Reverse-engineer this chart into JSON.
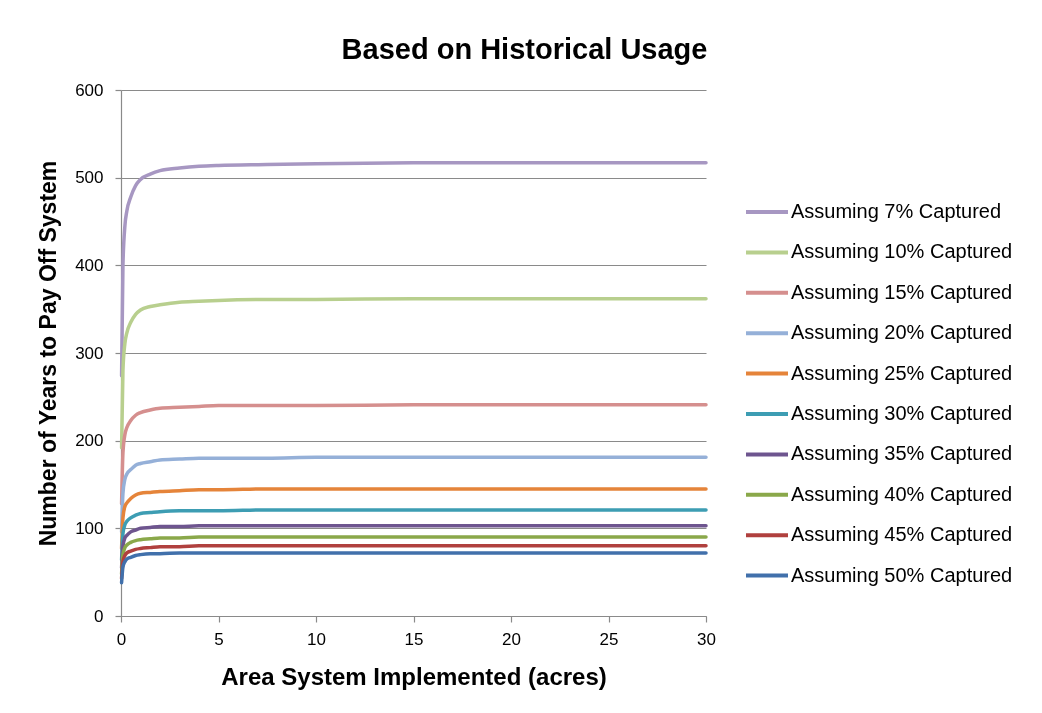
{
  "chart_data": {
    "type": "line",
    "title": "Based on Historical Usage",
    "xlabel": "Area System Implemented (acres)",
    "ylabel": "Number of Years to Pay Off System",
    "x": [
      0.03,
      0.1,
      0.2,
      0.3,
      0.5,
      0.75,
      1,
      1.5,
      2,
      3,
      4,
      5,
      7.5,
      10,
      15,
      20,
      30
    ],
    "series": [
      {
        "name": "Assuming 7% Captured",
        "color": "#a797c2",
        "values": [
          274,
          400,
          445,
          462,
          478,
          491,
          498,
          504,
          508,
          511,
          513,
          514,
          515,
          516,
          517,
          517,
          517
        ]
      },
      {
        "name": "Assuming 10% Captured",
        "color": "#b8cf8e",
        "values": [
          192,
          280,
          311,
          323,
          335,
          344,
          349,
          353,
          355,
          358,
          359,
          360,
          361,
          361,
          362,
          362,
          362
        ]
      },
      {
        "name": "Assuming 15% Captured",
        "color": "#d58f8e",
        "values": [
          128,
          186,
          207,
          215,
          223,
          229,
          232,
          235,
          237,
          238,
          239,
          240,
          240,
          240,
          241,
          241,
          241
        ]
      },
      {
        "name": "Assuming 20% Captured",
        "color": "#95b0d8",
        "values": [
          96,
          140,
          156,
          162,
          167,
          172,
          174,
          176,
          178,
          179,
          180,
          180,
          180,
          181,
          181,
          181,
          181
        ]
      },
      {
        "name": "Assuming 25% Captured",
        "color": "#e5843a",
        "values": [
          77,
          112,
          125,
          129,
          134,
          138,
          140,
          141,
          142,
          143,
          144,
          144,
          145,
          145,
          145,
          145,
          145
        ]
      },
      {
        "name": "Assuming 30% Captured",
        "color": "#3d9db3",
        "values": [
          64,
          94,
          104,
          108,
          112,
          115,
          117,
          118,
          119,
          120,
          120,
          120,
          121,
          121,
          121,
          121,
          121
        ]
      },
      {
        "name": "Assuming 35% Captured",
        "color": "#6e558f",
        "values": [
          55,
          80,
          89,
          92,
          96,
          98,
          100,
          101,
          102,
          102,
          103,
          103,
          103,
          103,
          103,
          103,
          103
        ]
      },
      {
        "name": "Assuming 40% Captured",
        "color": "#8aa84a",
        "values": [
          48,
          70,
          78,
          81,
          84,
          86,
          87,
          88,
          89,
          89,
          90,
          90,
          90,
          90,
          90,
          90,
          90
        ]
      },
      {
        "name": "Assuming 45% Captured",
        "color": "#b0403e",
        "values": [
          43,
          62,
          69,
          72,
          74,
          76,
          77,
          78,
          79,
          79,
          80,
          80,
          80,
          80,
          80,
          80,
          80
        ]
      },
      {
        "name": "Assuming 50% Captured",
        "color": "#4170ab",
        "values": [
          38,
          56,
          62,
          65,
          67,
          69,
          70,
          71,
          71,
          72,
          72,
          72,
          72,
          72,
          72,
          72,
          72
        ]
      }
    ],
    "xlim": [
      0,
      30
    ],
    "xticks": [
      0,
      5,
      10,
      15,
      20,
      25,
      30
    ],
    "ylim": [
      0,
      600
    ],
    "yticks": [
      0,
      100,
      200,
      300,
      400,
      500,
      600
    ],
    "grid": "y",
    "legend": "right",
    "line_style": "solid"
  }
}
